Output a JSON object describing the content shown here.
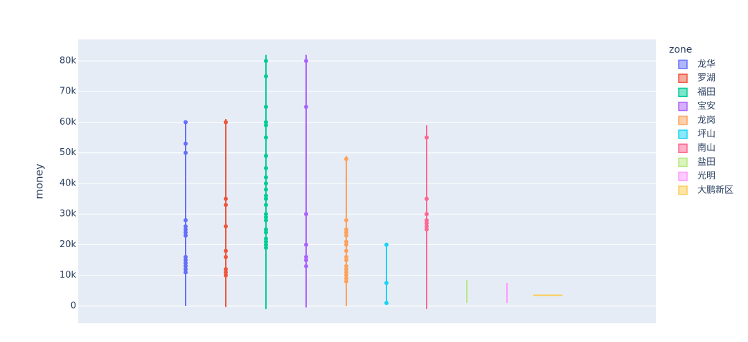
{
  "chart_data": {
    "type": "violin",
    "y_label": "money",
    "legend_title": "zone",
    "ylim": [
      -5650,
      87000
    ],
    "yticks": [
      0,
      {
        "value": 10000,
        "label": "10k"
      },
      {
        "value": 20000,
        "label": "20k"
      },
      {
        "value": 30000,
        "label": "30k"
      },
      {
        "value": 40000,
        "label": "40k"
      },
      {
        "value": 50000,
        "label": "50k"
      },
      {
        "value": 60000,
        "label": "60k"
      },
      {
        "value": 70000,
        "label": "70k"
      },
      {
        "value": 80000,
        "label": "80k"
      }
    ],
    "grid": true,
    "legend": "right",
    "series": [
      {
        "name": "龙华",
        "color": "#636efa",
        "range": [
          0,
          60500
        ],
        "values": [
          60000,
          53000,
          50000,
          28000,
          26000,
          25000,
          24000,
          23000,
          16000,
          15000,
          14000,
          13000,
          12000,
          11000
        ]
      },
      {
        "name": "罗湖",
        "color": "#ef553b",
        "range": [
          -300,
          61000
        ],
        "values": [
          60000,
          35000,
          33000,
          26000,
          18000,
          16000,
          12000,
          11000,
          10000
        ]
      },
      {
        "name": "福田",
        "color": "#00cc96",
        "range": [
          -1000,
          82000
        ],
        "values": [
          80000,
          75000,
          65000,
          60000,
          59000,
          55000,
          49000,
          45000,
          42000,
          40000,
          38000,
          36000,
          35000,
          33000,
          30000,
          29000,
          28000,
          25000,
          24000,
          22000,
          21000,
          20000,
          19000
        ]
      },
      {
        "name": "宝安",
        "color": "#ab63fa",
        "range": [
          -500,
          82000
        ],
        "values": [
          80000,
          65000,
          30000,
          20000,
          16000,
          15000,
          13000
        ]
      },
      {
        "name": "龙岗",
        "color": "#ffa15a",
        "range": [
          0,
          49000
        ],
        "values": [
          48000,
          28000,
          25000,
          24000,
          23000,
          21000,
          20000,
          18000,
          16000,
          15000,
          13000,
          12000,
          11000,
          10000,
          9000,
          8000
        ]
      },
      {
        "name": "坪山",
        "color": "#19d3f3",
        "range": [
          1000,
          20000
        ],
        "values": [
          20000,
          7500,
          1000
        ]
      },
      {
        "name": "南山",
        "color": "#ff6692",
        "range": [
          -1000,
          59000
        ],
        "values": [
          55000,
          35000,
          30000,
          28000,
          27000,
          26000,
          25000
        ]
      },
      {
        "name": "盐田",
        "color": "#b6e880",
        "range": [
          1000,
          8500
        ],
        "values": []
      },
      {
        "name": "光明",
        "color": "#ff97ff",
        "range": [
          1000,
          7500
        ],
        "values": []
      },
      {
        "name": "大鹏新区",
        "color": "#fecb52",
        "range": [
          3500,
          3500
        ],
        "values": []
      }
    ]
  }
}
